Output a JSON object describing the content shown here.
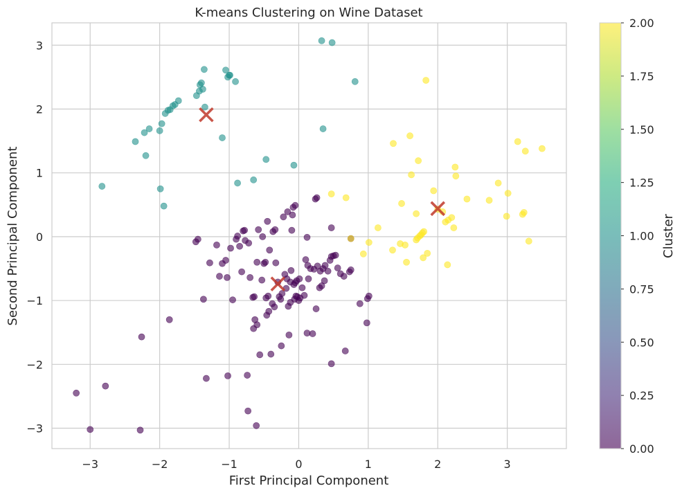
{
  "chart_data": {
    "type": "scatter",
    "title": "K-means Clustering on Wine Dataset",
    "xlabel": "First Principal Component",
    "ylabel": "Second Principal Component",
    "xlim": [
      -3.55,
      3.85
    ],
    "ylim": [
      -3.32,
      3.35
    ],
    "xticks": [
      -3,
      -2,
      -1,
      0,
      1,
      2,
      3
    ],
    "yticks": [
      -3,
      -2,
      -1,
      0,
      1,
      2,
      3
    ],
    "grid": true,
    "colorbar": {
      "label": "Cluster",
      "min": 0,
      "max": 2,
      "ticks": [
        0.0,
        0.25,
        0.5,
        0.75,
        1.0,
        1.25,
        1.5,
        1.75,
        2.0
      ],
      "tick_labels": [
        "0.00",
        "0.25",
        "0.50",
        "0.75",
        "1.00",
        "1.25",
        "1.50",
        "1.75",
        "2.00"
      ],
      "colormap": "viridis"
    },
    "colors": {
      "cluster_0": "#440154",
      "cluster_1": "#21918c",
      "cluster_2": "#fde725",
      "centroid": "#c0392b"
    },
    "series": [
      {
        "cluster": 0,
        "points": [
          [
            -3.2,
            -2.45
          ],
          [
            -3.0,
            -3.02
          ],
          [
            -2.78,
            -2.34
          ],
          [
            -2.28,
            -3.03
          ],
          [
            -2.26,
            -1.57
          ],
          [
            -1.86,
            -1.3
          ],
          [
            -1.48,
            -0.08
          ],
          [
            -1.45,
            -0.04
          ],
          [
            -1.37,
            -0.98
          ],
          [
            -1.33,
            -2.22
          ],
          [
            -1.28,
            -0.41
          ],
          [
            -1.18,
            -0.13
          ],
          [
            -1.14,
            -0.62
          ],
          [
            -1.1,
            -0.42
          ],
          [
            -1.05,
            -0.37
          ],
          [
            -1.03,
            -0.64
          ],
          [
            -1.02,
            -2.18
          ],
          [
            -0.98,
            -0.18
          ],
          [
            -0.95,
            -0.99
          ],
          [
            -0.9,
            -0.04
          ],
          [
            -0.88,
            0.01
          ],
          [
            -0.85,
            -0.15
          ],
          [
            -0.82,
            -0.55
          ],
          [
            -0.8,
            0.09
          ],
          [
            -0.78,
            0.1
          ],
          [
            -0.77,
            -0.06
          ],
          [
            -0.74,
            -2.17
          ],
          [
            -0.73,
            -2.73
          ],
          [
            -0.72,
            -0.1
          ],
          [
            -0.7,
            -0.64
          ],
          [
            -0.66,
            -0.95
          ],
          [
            -0.65,
            -1.44
          ],
          [
            -0.64,
            -0.94
          ],
          [
            -0.63,
            -1.3
          ],
          [
            -0.61,
            -2.96
          ],
          [
            -0.6,
            -1.38
          ],
          [
            -0.6,
            -0.4
          ],
          [
            -0.58,
            0.11
          ],
          [
            -0.56,
            -1.85
          ],
          [
            -0.53,
            -0.68
          ],
          [
            -0.52,
            0.0
          ],
          [
            -0.5,
            -0.42
          ],
          [
            -0.48,
            -0.4
          ],
          [
            -0.47,
            -0.96
          ],
          [
            -0.46,
            -1.23
          ],
          [
            -0.45,
            0.24
          ],
          [
            -0.44,
            -0.93
          ],
          [
            -0.43,
            -1.17
          ],
          [
            -0.42,
            -0.21
          ],
          [
            -0.4,
            -1.84
          ],
          [
            -0.38,
            -1.05
          ],
          [
            -0.37,
            0.08
          ],
          [
            -0.35,
            -1.1
          ],
          [
            -0.34,
            0.11
          ],
          [
            -0.33,
            -0.41
          ],
          [
            -0.3,
            -0.71
          ],
          [
            -0.28,
            -0.94
          ],
          [
            -0.26,
            -0.98
          ],
          [
            -0.25,
            -1.71
          ],
          [
            -0.24,
            -0.89
          ],
          [
            -0.22,
            0.31
          ],
          [
            -0.2,
            -0.59
          ],
          [
            -0.18,
            -0.81
          ],
          [
            -0.17,
            -0.66
          ],
          [
            -0.16,
            0.39
          ],
          [
            -0.15,
            -1.09
          ],
          [
            -0.14,
            -1.54
          ],
          [
            -0.12,
            -1.03
          ],
          [
            -0.12,
            -0.71
          ],
          [
            -0.11,
            -0.53
          ],
          [
            -0.1,
            0.1
          ],
          [
            -0.09,
            0.34
          ],
          [
            -0.08,
            0.46
          ],
          [
            -0.07,
            -0.75
          ],
          [
            -0.06,
            -0.98
          ],
          [
            -0.05,
            0.49
          ],
          [
            -0.05,
            -0.72
          ],
          [
            -0.04,
            -0.93
          ],
          [
            -0.03,
            -0.69
          ],
          [
            -0.02,
            -0.94
          ],
          [
            0.0,
            -1.0
          ],
          [
            0.01,
            -0.66
          ],
          [
            0.02,
            -0.96
          ],
          [
            0.05,
            -0.8
          ],
          [
            0.08,
            -0.92
          ],
          [
            0.1,
            -0.36
          ],
          [
            0.12,
            -1.51
          ],
          [
            0.12,
            -0.01
          ],
          [
            0.13,
            -0.45
          ],
          [
            0.14,
            -0.66
          ],
          [
            0.17,
            -0.5
          ],
          [
            0.2,
            -1.52
          ],
          [
            0.22,
            -0.51
          ],
          [
            0.24,
            0.59
          ],
          [
            0.25,
            -1.13
          ],
          [
            0.26,
            0.61
          ],
          [
            0.27,
            -0.46
          ],
          [
            0.3,
            -0.8
          ],
          [
            0.31,
            -0.54
          ],
          [
            0.33,
            -0.77
          ],
          [
            0.35,
            -0.5
          ],
          [
            0.37,
            -0.69
          ],
          [
            0.38,
            -0.45
          ],
          [
            0.42,
            -0.54
          ],
          [
            0.45,
            -0.37
          ],
          [
            0.47,
            -0.31
          ],
          [
            0.47,
            0.14
          ],
          [
            0.47,
            -1.99
          ],
          [
            0.5,
            -0.3
          ],
          [
            0.53,
            -0.29
          ],
          [
            0.56,
            -0.49
          ],
          [
            0.6,
            -0.58
          ],
          [
            0.65,
            -0.62
          ],
          [
            0.67,
            -1.79
          ],
          [
            0.73,
            -0.55
          ],
          [
            0.75,
            -0.52
          ],
          [
            0.75,
            -0.03
          ],
          [
            0.88,
            -1.05
          ],
          [
            0.98,
            -1.35
          ],
          [
            0.99,
            -0.97
          ],
          [
            1.01,
            -0.93
          ]
        ]
      },
      {
        "cluster": 1,
        "points": [
          [
            -2.83,
            0.79
          ],
          [
            -2.35,
            1.49
          ],
          [
            -2.22,
            1.63
          ],
          [
            -2.2,
            1.27
          ],
          [
            -2.15,
            1.69
          ],
          [
            -2.0,
            1.66
          ],
          [
            -1.99,
            0.75
          ],
          [
            -1.97,
            1.77
          ],
          [
            -1.94,
            0.48
          ],
          [
            -1.92,
            1.93
          ],
          [
            -1.88,
            1.98
          ],
          [
            -1.85,
            1.99
          ],
          [
            -1.81,
            2.05
          ],
          [
            -1.78,
            2.07
          ],
          [
            -1.73,
            2.13
          ],
          [
            -1.47,
            2.21
          ],
          [
            -1.43,
            2.28
          ],
          [
            -1.42,
            2.38
          ],
          [
            -1.4,
            2.41
          ],
          [
            -1.38,
            2.31
          ],
          [
            -1.36,
            2.62
          ],
          [
            -1.35,
            2.03
          ],
          [
            -1.1,
            1.55
          ],
          [
            -1.05,
            2.61
          ],
          [
            -1.02,
            2.5
          ],
          [
            -1.0,
            2.53
          ],
          [
            -0.99,
            2.53
          ],
          [
            -0.91,
            2.43
          ],
          [
            -0.88,
            0.84
          ],
          [
            -0.65,
            0.89
          ],
          [
            -0.47,
            1.21
          ],
          [
            -0.07,
            1.12
          ],
          [
            0.33,
            3.07
          ],
          [
            0.35,
            1.69
          ],
          [
            0.48,
            3.04
          ],
          [
            0.81,
            2.43
          ]
        ]
      },
      {
        "cluster": 2,
        "points": [
          [
            0.47,
            0.67
          ],
          [
            0.68,
            0.61
          ],
          [
            0.75,
            -0.03
          ],
          [
            0.93,
            -0.27
          ],
          [
            1.01,
            -0.09
          ],
          [
            1.14,
            0.14
          ],
          [
            1.35,
            -0.21
          ],
          [
            1.36,
            1.46
          ],
          [
            1.46,
            -0.11
          ],
          [
            1.48,
            0.52
          ],
          [
            1.53,
            -0.13
          ],
          [
            1.55,
            -0.4
          ],
          [
            1.6,
            1.58
          ],
          [
            1.62,
            0.97
          ],
          [
            1.69,
            0.36
          ],
          [
            1.69,
            -0.05
          ],
          [
            1.71,
            -0.02
          ],
          [
            1.72,
            1.19
          ],
          [
            1.74,
            0.01
          ],
          [
            1.76,
            0.03
          ],
          [
            1.78,
            0.06
          ],
          [
            1.79,
            -0.33
          ],
          [
            1.8,
            0.08
          ],
          [
            1.83,
            2.45
          ],
          [
            1.85,
            -0.26
          ],
          [
            1.94,
            0.72
          ],
          [
            2.0,
            0.43
          ],
          [
            2.07,
            0.39
          ],
          [
            2.11,
            0.23
          ],
          [
            2.14,
            -0.44
          ],
          [
            2.15,
            0.26
          ],
          [
            2.2,
            0.3
          ],
          [
            2.23,
            0.14
          ],
          [
            2.25,
            1.09
          ],
          [
            2.26,
            0.95
          ],
          [
            2.42,
            0.59
          ],
          [
            2.74,
            0.57
          ],
          [
            2.87,
            0.84
          ],
          [
            2.99,
            0.32
          ],
          [
            3.01,
            0.68
          ],
          [
            3.15,
            1.49
          ],
          [
            3.22,
            0.35
          ],
          [
            3.24,
            0.38
          ],
          [
            3.26,
            1.34
          ],
          [
            3.31,
            -0.07
          ],
          [
            3.5,
            1.38
          ]
        ]
      }
    ],
    "centroids": [
      {
        "cluster": 0,
        "x": -0.3,
        "y": -0.74
      },
      {
        "cluster": 1,
        "x": -1.33,
        "y": 1.91
      },
      {
        "cluster": 2,
        "x": 2.0,
        "y": 0.44
      }
    ]
  }
}
